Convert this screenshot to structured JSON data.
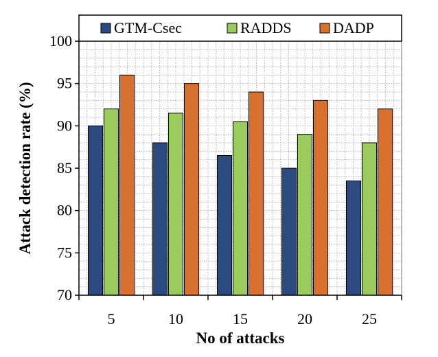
{
  "chart_data": {
    "type": "bar",
    "title": "",
    "xlabel": "No of attacks",
    "ylabel": "Attack detection rate (%)",
    "categories": [
      "5",
      "10",
      "15",
      "20",
      "25"
    ],
    "series": [
      {
        "name": "GTM-Csec",
        "values": [
          90,
          88,
          86.5,
          85,
          83.5
        ]
      },
      {
        "name": "RADDS",
        "values": [
          92,
          91.5,
          90.5,
          89,
          88
        ]
      },
      {
        "name": "DADP",
        "values": [
          96,
          95,
          94,
          93,
          92
        ]
      }
    ],
    "ylim": [
      70,
      100
    ],
    "yticks": [
      "70",
      "75",
      "80",
      "85",
      "90",
      "95",
      "100"
    ],
    "grid": true,
    "legend_position": "top",
    "colors": {
      "series": [
        "#2b4a80",
        "#9bcb5d",
        "#d8712d"
      ],
      "grid": "#b0b0b0",
      "axis": "#000000"
    }
  }
}
